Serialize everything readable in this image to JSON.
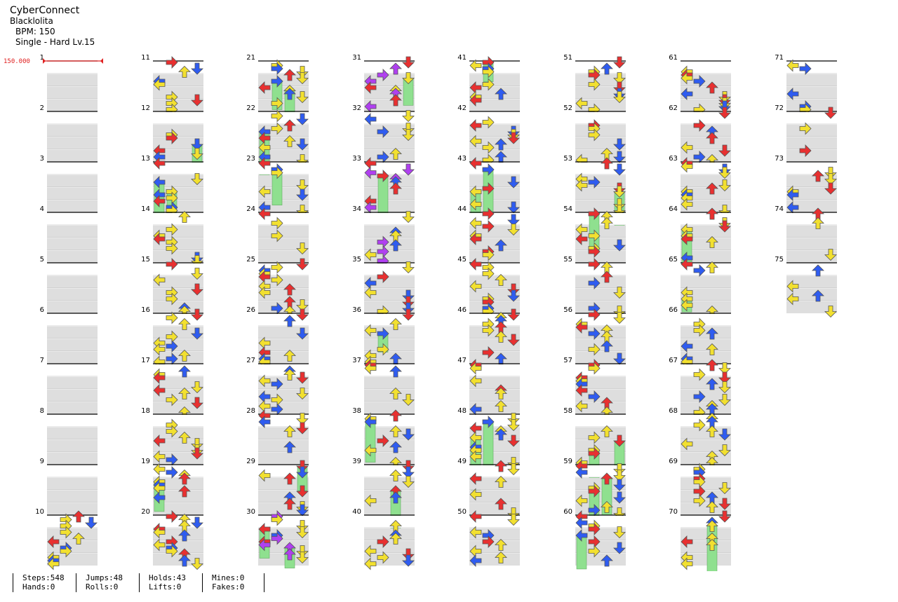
{
  "song": {
    "title": "CyberConnect",
    "artist": "Blacklolita",
    "bpm_text": "BPM: 150",
    "chart_text": "Single - Hard  Lv.15"
  },
  "bpm_marker": {
    "label": "150.000",
    "color": "#e02020"
  },
  "measures": [
    "1",
    "2",
    "3",
    "4",
    "5",
    "6",
    "7",
    "8",
    "9",
    "10",
    "11",
    "12",
    "13",
    "14",
    "15",
    "16",
    "17",
    "18",
    "19",
    "20",
    "21",
    "22",
    "23",
    "24",
    "25",
    "26",
    "27",
    "28",
    "29",
    "30",
    "31",
    "32",
    "33",
    "34",
    "35",
    "36",
    "37",
    "38",
    "39",
    "40",
    "41",
    "42",
    "43",
    "44",
    "45",
    "46",
    "47",
    "48",
    "49",
    "50",
    "51",
    "52",
    "53",
    "54",
    "55",
    "56",
    "57",
    "58",
    "59",
    "60",
    "61",
    "62",
    "63",
    "64",
    "65",
    "66",
    "67",
    "68",
    "69",
    "70",
    "71",
    "72",
    "73",
    "74",
    "75"
  ],
  "arrow_colors": {
    "quarter": "#e83030",
    "eighth": "#2f5cf0",
    "sixteenth": "#f2e030",
    "other": "#b040f0",
    "hold": "#8fe08f"
  },
  "stats": [
    {
      "top": "Steps:548",
      "bottom": "Hands:0"
    },
    {
      "top": "Jumps:48",
      "bottom": "Rolls:0"
    },
    {
      "top": "Holds:43",
      "bottom": "Lifts:0"
    },
    {
      "top": "Mines:0",
      "bottom": "Fakes:0"
    }
  ]
}
